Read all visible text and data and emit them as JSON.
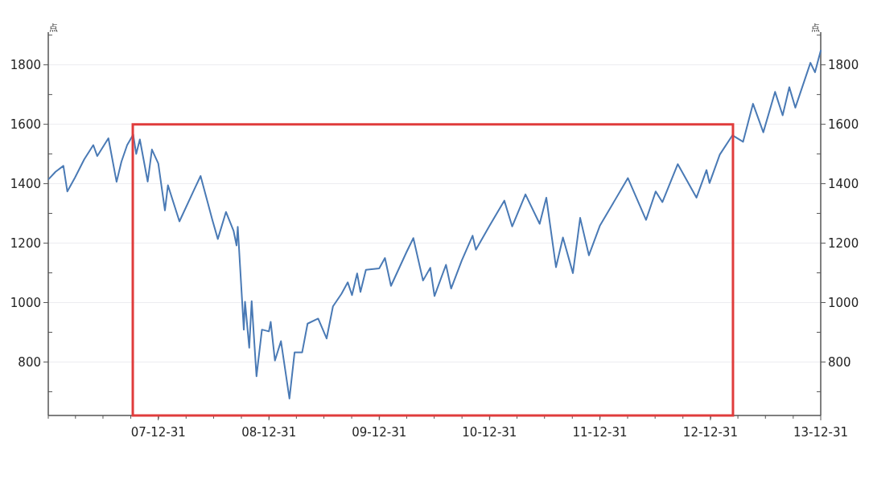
{
  "chart_data": {
    "type": "line",
    "ylabel": "点",
    "y2label": "点",
    "xlim": [
      "2007-01-01",
      "2013-12-31"
    ],
    "xticks": [
      {
        "value": "2007-12-31",
        "label": "07-12-31"
      },
      {
        "value": "2008-12-31",
        "label": "08-12-31"
      },
      {
        "value": "2009-12-31",
        "label": "09-12-31"
      },
      {
        "value": "2010-12-31",
        "label": "10-12-31"
      },
      {
        "value": "2011-12-31",
        "label": "11-12-31"
      },
      {
        "value": "2012-12-31",
        "label": "12-12-31"
      },
      {
        "value": "2013-12-31",
        "label": "13-12-31"
      }
    ],
    "ylim": [
      620,
      1910
    ],
    "yticks": [
      {
        "value": 700,
        "label": null
      },
      800,
      {
        "value": 900,
        "label": null
      },
      1000,
      {
        "value": 1100,
        "label": null
      },
      1200,
      {
        "value": 1300,
        "label": null
      },
      1400,
      {
        "value": 1500,
        "label": null
      },
      1600,
      {
        "value": 1700,
        "label": null
      },
      1800,
      {
        "value": 1900,
        "label": null
      }
    ],
    "y2lim": [
      620,
      1910
    ],
    "y2ticks": [
      {
        "value": 700,
        "label": null
      },
      800,
      {
        "value": 900,
        "label": null
      },
      1000,
      {
        "value": 1100,
        "label": null
      },
      1200,
      {
        "value": 1300,
        "label": null
      },
      1400,
      {
        "value": 1500,
        "label": null
      },
      1600,
      {
        "value": 1700,
        "label": null
      },
      1800,
      {
        "value": 1900,
        "label": null
      }
    ],
    "grid": "y",
    "marker": "none",
    "line_style": "solid",
    "series": [
      {
        "color": "#4a7ab5",
        "x": [
          "2007-01-03",
          "2007-01-25",
          "2007-02-20",
          "2007-03-05",
          "2007-03-30",
          "2007-04-30",
          "2007-05-30",
          "2007-06-12",
          "2007-07-19",
          "2007-08-15",
          "2007-08-31",
          "2007-09-19",
          "2007-10-09",
          "2007-10-19",
          "2007-10-31",
          "2007-11-26",
          "2007-12-10",
          "2007-12-31",
          "2008-01-22",
          "2008-02-01",
          "2008-03-10",
          "2008-04-30",
          "2008-05-19",
          "2008-06-27",
          "2008-07-15",
          "2008-08-11",
          "2008-09-05",
          "2008-09-15",
          "2008-09-19",
          "2008-10-09",
          "2008-10-13",
          "2008-10-27",
          "2008-11-04",
          "2008-11-20",
          "2008-12-08",
          "2008-12-31",
          "2009-01-06",
          "2009-01-20",
          "2009-02-09",
          "2009-03-09",
          "2009-03-26",
          "2009-04-20",
          "2009-05-08",
          "2009-06-12",
          "2009-07-10",
          "2009-07-31",
          "2009-08-28",
          "2009-09-18",
          "2009-10-02",
          "2009-10-19",
          "2009-10-30",
          "2009-11-17",
          "2009-12-31",
          "2010-01-19",
          "2010-02-08",
          "2010-03-31",
          "2010-04-23",
          "2010-05-25",
          "2010-06-18",
          "2010-07-02",
          "2010-08-09",
          "2010-08-26",
          "2010-09-30",
          "2010-11-05",
          "2010-11-16",
          "2010-12-31",
          "2011-02-18",
          "2011-03-16",
          "2011-04-29",
          "2011-06-15",
          "2011-07-07",
          "2011-08-08",
          "2011-08-31",
          "2011-10-03",
          "2011-10-27",
          "2011-11-25",
          "2011-12-31",
          "2012-04-02",
          "2012-06-01",
          "2012-07-03",
          "2012-07-25",
          "2012-09-14",
          "2012-11-15",
          "2012-12-18",
          "2012-12-28",
          "2013-01-31",
          "2013-03-14",
          "2013-04-18",
          "2013-05-21",
          "2013-06-24",
          "2013-08-02",
          "2013-08-27",
          "2013-09-18",
          "2013-10-08",
          "2013-11-27",
          "2013-12-12",
          "2013-12-31"
        ],
        "values": [
          1416,
          1440,
          1460,
          1374,
          1420,
          1482,
          1530,
          1493,
          1553,
          1406,
          1474,
          1530,
          1565,
          1500,
          1549,
          1407,
          1515,
          1468,
          1310,
          1395,
          1273,
          1385,
          1426,
          1278,
          1214,
          1305,
          1242,
          1192,
          1255,
          909,
          1003,
          848,
          1005,
          752,
          909,
          903,
          935,
          805,
          870,
          677,
          832,
          832,
          929,
          946,
          879,
          987,
          1029,
          1068,
          1025,
          1098,
          1036,
          1110,
          1115,
          1150,
          1056,
          1169,
          1217,
          1074,
          1117,
          1022,
          1127,
          1047,
          1141,
          1225,
          1178,
          1258,
          1343,
          1256,
          1364,
          1265,
          1353,
          1119,
          1219,
          1099,
          1285,
          1159,
          1258,
          1419,
          1278,
          1374,
          1338,
          1466,
          1353,
          1446,
          1402,
          1498,
          1563,
          1541,
          1669,
          1573,
          1709,
          1630,
          1725,
          1656,
          1807,
          1775,
          1848
        ]
      }
    ]
  }
}
